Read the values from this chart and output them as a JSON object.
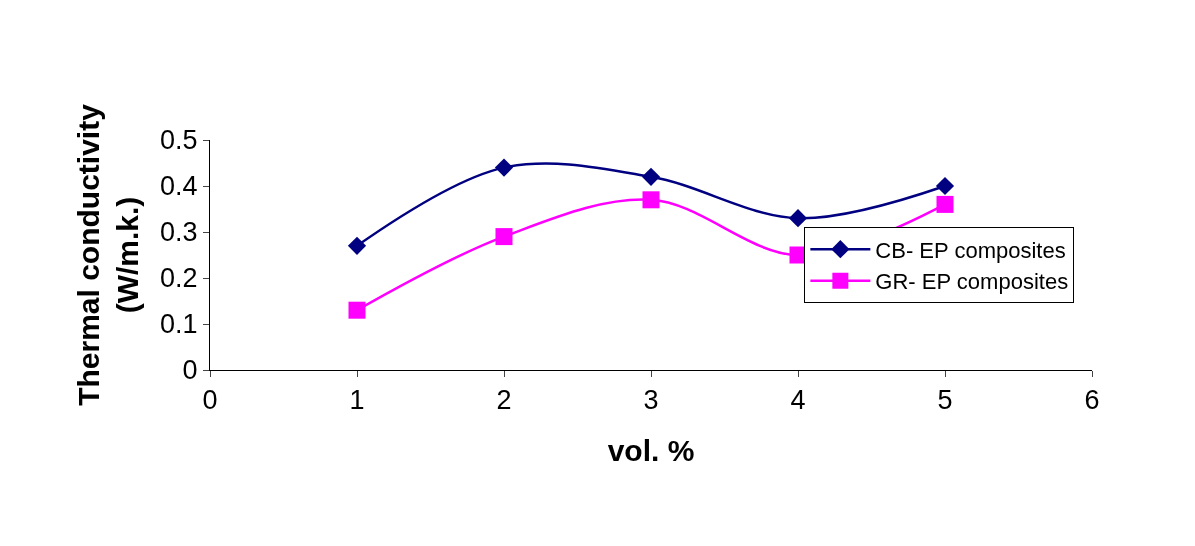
{
  "chart_data": {
    "type": "line",
    "xlabel": "vol. %",
    "ylabel": "Thermal conductivity\n(W/m.k.)",
    "x": [
      1,
      2,
      3,
      4,
      5
    ],
    "series": [
      {
        "name": "CB- EP composites",
        "color": "#000080",
        "marker": "diamond",
        "values": [
          0.27,
          0.44,
          0.42,
          0.33,
          0.4
        ]
      },
      {
        "name": "GR- EP composites",
        "color": "#ff00ff",
        "marker": "square",
        "values": [
          0.13,
          0.29,
          0.37,
          0.25,
          0.36
        ]
      }
    ],
    "xlim": [
      0,
      6
    ],
    "xticks": [
      0,
      1,
      2,
      3,
      4,
      5,
      6
    ],
    "ylim": [
      0,
      0.5
    ],
    "yticks": [
      0,
      0.1,
      0.2,
      0.3,
      0.4,
      0.5
    ],
    "grid": false,
    "legend": "right",
    "line_style": "solid"
  }
}
